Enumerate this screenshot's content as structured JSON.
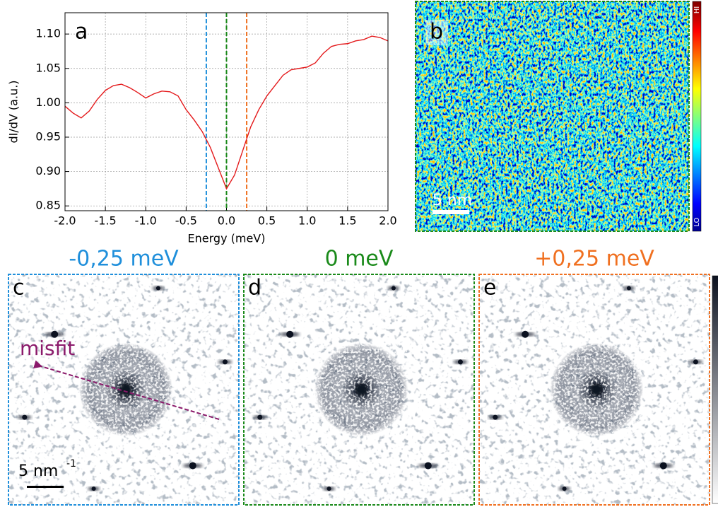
{
  "chart_data": {
    "type": "line",
    "panel_label": "a",
    "xlabel": "Energy (meV)",
    "ylabel": "dI/dV (a.u.)",
    "x": [
      -2.0,
      -1.9,
      -1.8,
      -1.7,
      -1.6,
      -1.5,
      -1.4,
      -1.3,
      -1.2,
      -1.1,
      -1.0,
      -0.9,
      -0.8,
      -0.7,
      -0.6,
      -0.5,
      -0.4,
      -0.3,
      -0.2,
      -0.1,
      0.0,
      0.1,
      0.2,
      0.3,
      0.4,
      0.5,
      0.6,
      0.7,
      0.8,
      0.9,
      1.0,
      1.1,
      1.2,
      1.3,
      1.4,
      1.5,
      1.6,
      1.7,
      1.8,
      1.9,
      2.0
    ],
    "series": [
      {
        "color": "#e41a1c",
        "values": [
          0.995,
          0.985,
          0.978,
          0.988,
          1.005,
          1.018,
          1.025,
          1.027,
          1.022,
          1.015,
          1.007,
          1.013,
          1.017,
          1.016,
          1.01,
          0.99,
          0.975,
          0.958,
          0.935,
          0.905,
          0.875,
          0.895,
          0.93,
          0.965,
          0.99,
          1.01,
          1.025,
          1.04,
          1.048,
          1.05,
          1.052,
          1.058,
          1.072,
          1.082,
          1.085,
          1.086,
          1.09,
          1.092,
          1.097,
          1.095,
          1.09
        ]
      }
    ],
    "markers": [
      {
        "x": -0.25,
        "color": "#1f8fdb"
      },
      {
        "x": 0,
        "color": "#1a8a1a"
      },
      {
        "x": 0.25,
        "color": "#f07020"
      }
    ],
    "xlim": [
      -2.0,
      2.0
    ],
    "ylim": [
      0.843,
      1.131
    ],
    "xticks": [
      {
        "value": -2.0,
        "label": "-2.0"
      },
      {
        "value": -1.5,
        "label": "-1.5"
      },
      {
        "value": -1.0,
        "label": "-1.0"
      },
      {
        "value": -0.5,
        "label": "-0.5"
      },
      {
        "value": 0,
        "label": "0.0"
      },
      {
        "value": 0.5,
        "label": "0.5"
      },
      {
        "value": 1.0,
        "label": "1.0"
      },
      {
        "value": 1.5,
        "label": "1.5"
      },
      {
        "value": 2.0,
        "label": "2.0"
      }
    ],
    "yticks": [
      {
        "value": 0.85,
        "label": "0.85"
      },
      {
        "value": 0.9,
        "label": "0.90"
      },
      {
        "value": 0.95,
        "label": "0.95"
      },
      {
        "value": 1.0,
        "label": "1.00"
      },
      {
        "value": 1.05,
        "label": "1.05"
      },
      {
        "value": 1.1,
        "label": "1.10"
      }
    ],
    "grid": true
  },
  "panels": {
    "b": {
      "label": "b",
      "color": "#1a8a1a",
      "scale_bar": "5 nm",
      "colorbar_high": "HI",
      "colorbar_low": "LO"
    },
    "c": {
      "label": "c",
      "title": "-0,25 meV",
      "color": "#1f8fdb",
      "scale_bar": "5 nm",
      "scale_bar_exp": "-1",
      "annotation": "misfit"
    },
    "d": {
      "label": "d",
      "title": "0 meV",
      "color": "#1a8a1a"
    },
    "e": {
      "label": "e",
      "title": "+0,25 meV",
      "color": "#f07020"
    }
  }
}
